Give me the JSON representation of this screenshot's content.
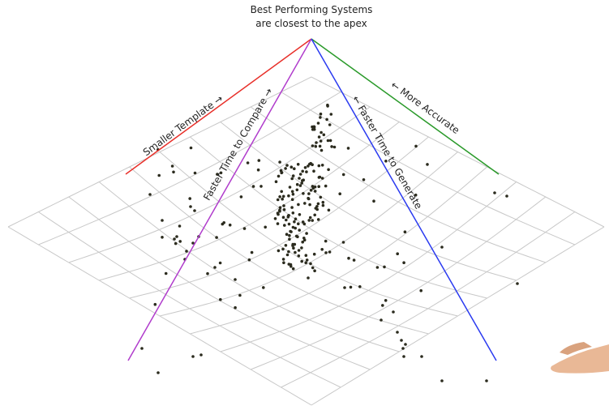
{
  "header": {
    "title_lines": [
      "Best Performing Systems",
      "are closest to the apex"
    ]
  },
  "labels": {
    "red": "Smaller Template →",
    "green": "← More Accurate",
    "purple": "Faster Time to Compare →",
    "blue": "← Faster Time to Generate"
  }
}
